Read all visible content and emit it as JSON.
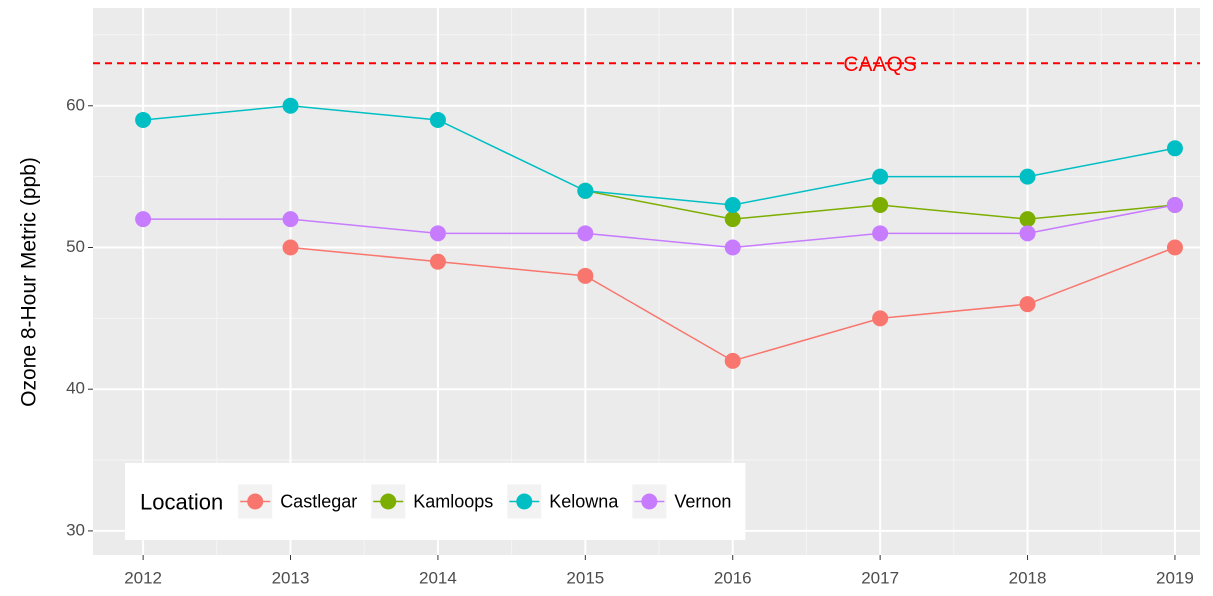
{
  "chart_data": {
    "type": "line",
    "y_label": "Ozone 8-Hour Metric (ppb)",
    "x": [
      2012,
      2013,
      2014,
      2015,
      2016,
      2017,
      2018,
      2019
    ],
    "series": [
      {
        "name": "Castlegar",
        "color": "#F8766D",
        "values": [
          null,
          50,
          49,
          48,
          42,
          45,
          46,
          50
        ]
      },
      {
        "name": "Kamloops",
        "color": "#7CAE00",
        "values": [
          null,
          null,
          null,
          54,
          52,
          53,
          52,
          53
        ]
      },
      {
        "name": "Kelowna",
        "color": "#00BFC4",
        "values": [
          59,
          60,
          59,
          54,
          53,
          55,
          55,
          57
        ]
      },
      {
        "name": "Vernon",
        "color": "#C77CFF",
        "values": [
          52,
          52,
          51,
          51,
          50,
          51,
          51,
          53
        ]
      }
    ],
    "xlim": [
      2011.66,
      2019.17
    ],
    "xticks": [
      2012,
      2013,
      2014,
      2015,
      2016,
      2017,
      2018,
      2019
    ],
    "ylim": [
      28.3,
      66.9
    ],
    "yticks": [
      30,
      40,
      50,
      60
    ],
    "grid": true,
    "minor_grid": true,
    "hline": {
      "value": 63,
      "label": "CAAQS",
      "color": "#FF0000",
      "label_x": 2017
    },
    "legend": {
      "title": "Location",
      "position": "bottom-left"
    }
  }
}
